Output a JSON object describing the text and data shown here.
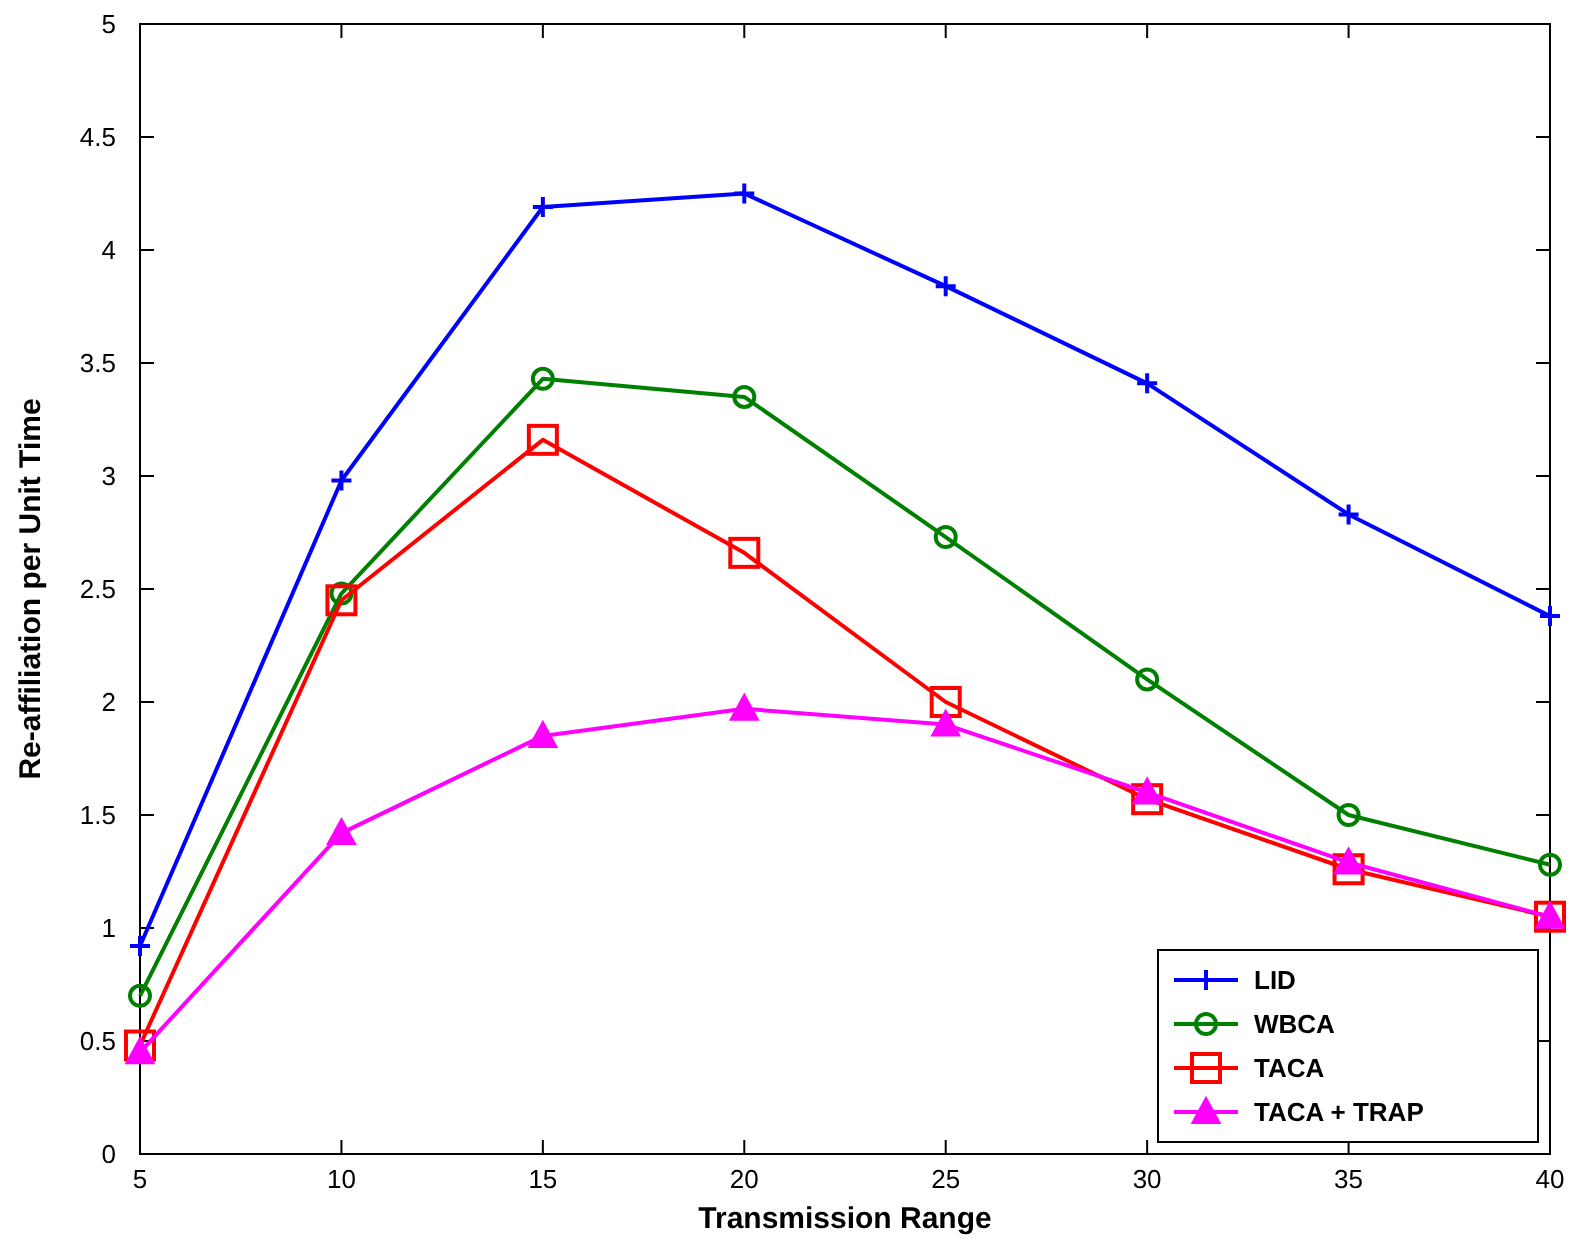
{
  "chart_data": {
    "type": "line",
    "xlabel": "Transmission Range",
    "ylabel": "Re-affiliation per Unit Time",
    "x": [
      5,
      10,
      15,
      20,
      25,
      30,
      35,
      40
    ],
    "xlim": [
      5,
      40
    ],
    "xticks": [
      5,
      10,
      15,
      20,
      25,
      30,
      35,
      40
    ],
    "ylim": [
      0,
      5
    ],
    "yticks": [
      0,
      0.5,
      1,
      1.5,
      2,
      2.5,
      3,
      3.5,
      4,
      4.5,
      5
    ],
    "grid": false,
    "legend": "bottom right",
    "line_style": "solid",
    "series": [
      {
        "name": "LID",
        "color": "#0000ff",
        "marker": "cross",
        "values": [
          0.92,
          2.98,
          4.19,
          4.25,
          3.84,
          3.41,
          2.83,
          2.38
        ]
      },
      {
        "name": "WBCA",
        "color": "#008000",
        "marker": "circle",
        "values": [
          0.7,
          2.48,
          3.43,
          3.35,
          2.73,
          2.1,
          1.5,
          1.28
        ]
      },
      {
        "name": "TACA",
        "color": "#ff0000",
        "marker": "square",
        "values": [
          0.48,
          2.45,
          3.16,
          2.66,
          2.0,
          1.57,
          1.26,
          1.05
        ]
      },
      {
        "name": "TACA + TRAP",
        "color": "#ff00ff",
        "marker": "triangle",
        "values": [
          0.45,
          1.42,
          1.85,
          1.97,
          1.9,
          1.6,
          1.29,
          1.05
        ]
      }
    ]
  }
}
